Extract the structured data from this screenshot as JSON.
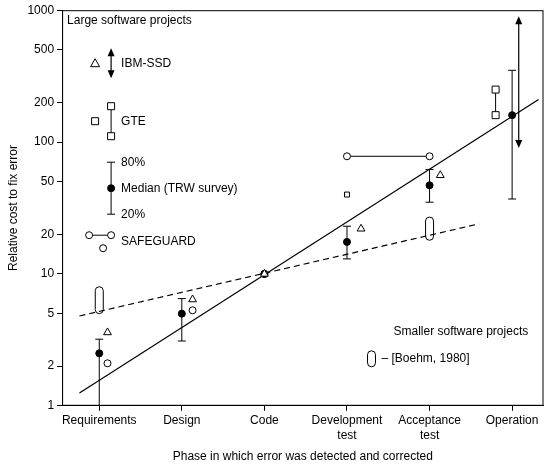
{
  "chart_data": {
    "type": "scatter",
    "x_label": "Phase in which error was detected and corrected",
    "y_label": "Relative cost to fix error",
    "xlim": [
      -0.45,
      5.38
    ],
    "xticks": [
      {
        "value": 0,
        "label": "Requirements"
      },
      {
        "value": 1,
        "label": "Design"
      },
      {
        "value": 2,
        "label": "Code"
      },
      {
        "value": 3,
        "label": "Development test"
      },
      {
        "value": 4,
        "label": "Acceptance test"
      },
      {
        "value": 5,
        "label": "Operation"
      }
    ],
    "ylim": [
      1,
      1000
    ],
    "yticks": [
      1,
      2,
      5,
      10,
      20,
      50,
      100,
      200,
      500,
      1000
    ],
    "log": "y",
    "grid": false,
    "groups": [
      {
        "title": "Large software projects",
        "legend": "upper left"
      },
      {
        "title": "Smaller software projects",
        "legend": "lower right"
      }
    ],
    "series": [
      {
        "name": "IBM-SSD",
        "group": "Large software projects",
        "marker": "triangle",
        "line_style": "arrow",
        "color": "#000000",
        "x": [
          0.1,
          1.13,
          2,
          3.17,
          4.13
        ],
        "values": [
          3.6,
          6.4,
          10,
          22,
          56
        ],
        "ranges": [
          {
            "x": 5.08,
            "low": 90,
            "high": 900
          }
        ]
      },
      {
        "name": "GTE",
        "group": "Large software projects",
        "marker": "square",
        "line_style": "solid",
        "color": "#000000",
        "x": [
          2,
          3
        ],
        "values": [
          10,
          40
        ],
        "ranges": [
          {
            "x": 4.8,
            "low": 160,
            "high": 250
          }
        ]
      },
      {
        "name": "Median (TRW survey)",
        "group": "Large software projects",
        "marker": "dot",
        "color": "#000000",
        "x": [
          0,
          1,
          2,
          3,
          4,
          5
        ],
        "values": [
          2.5,
          5,
          10,
          17.5,
          47,
          160
        ],
        "error_low": [
          1,
          3.1,
          null,
          13,
          35,
          37
        ],
        "error_high": [
          3.2,
          6.5,
          null,
          23,
          62,
          350
        ],
        "error_labels": {
          "high": "80%",
          "low": "20%"
        }
      },
      {
        "name": "SAFEGUARD",
        "group": "Large software projects",
        "marker": "circle",
        "color": "#000000",
        "x": [
          0.1,
          1.13,
          2
        ],
        "values": [
          2.1,
          5.3,
          10
        ],
        "segments": [
          {
            "x": [
              3,
              4
            ],
            "value": 78
          }
        ]
      },
      {
        "name": "– [Boehm, 1980]",
        "group": "Smaller software projects",
        "marker": "capsule",
        "color": "#000000",
        "ranges": [
          {
            "x": 0,
            "low": 5,
            "high": 8
          },
          {
            "x": 4,
            "low": 18,
            "high": 27
          }
        ]
      },
      {
        "type": "line",
        "line_style": "solid",
        "color": "#000000",
        "x": [
          -0.24,
          5.32
        ],
        "values": [
          1.25,
          210
        ]
      },
      {
        "type": "line",
        "line_style": "dashed",
        "color": "#000000",
        "x": [
          -0.24,
          4.6
        ],
        "values": [
          4.8,
          24
        ]
      }
    ]
  }
}
